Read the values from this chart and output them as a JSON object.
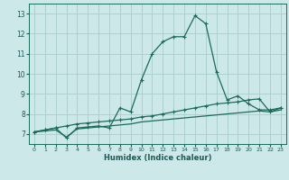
{
  "xlabel": "Humidex (Indice chaleur)",
  "bg_color": "#cce8e8",
  "grid_color": "#aacccc",
  "line_color": "#1a6b5a",
  "xlim": [
    -0.5,
    23.5
  ],
  "ylim": [
    6.5,
    13.5
  ],
  "xticks": [
    0,
    1,
    2,
    3,
    4,
    5,
    6,
    7,
    8,
    9,
    10,
    11,
    12,
    13,
    14,
    15,
    16,
    17,
    18,
    19,
    20,
    21,
    22,
    23
  ],
  "yticks": [
    7,
    8,
    9,
    10,
    11,
    12,
    13
  ],
  "line1_x": [
    0,
    1,
    2,
    3,
    4,
    5,
    6,
    7,
    8,
    9,
    10,
    11,
    12,
    13,
    14,
    15,
    16,
    17,
    18,
    19,
    20,
    21,
    22,
    23
  ],
  "line1_y": [
    7.1,
    7.2,
    7.3,
    6.8,
    7.3,
    7.35,
    7.4,
    7.3,
    8.3,
    8.1,
    9.7,
    11.0,
    11.6,
    11.85,
    11.85,
    12.9,
    12.5,
    10.1,
    8.7,
    8.9,
    8.5,
    8.2,
    8.2,
    8.3
  ],
  "line2_x": [
    0,
    1,
    2,
    3,
    4,
    5,
    6,
    7,
    8,
    9,
    10,
    11,
    12,
    13,
    14,
    15,
    16,
    17,
    18,
    19,
    20,
    21,
    22,
    23
  ],
  "line2_y": [
    7.1,
    7.2,
    7.3,
    7.4,
    7.5,
    7.55,
    7.6,
    7.65,
    7.7,
    7.75,
    7.85,
    7.9,
    8.0,
    8.1,
    8.2,
    8.3,
    8.4,
    8.5,
    8.55,
    8.6,
    8.7,
    8.75,
    8.1,
    8.3
  ],
  "line3_x": [
    0,
    1,
    2,
    3,
    4,
    5,
    6,
    7,
    8,
    9,
    10,
    11,
    12,
    13,
    14,
    15,
    16,
    17,
    18,
    19,
    20,
    21,
    22,
    23
  ],
  "line3_y": [
    7.1,
    7.15,
    7.2,
    6.85,
    7.25,
    7.3,
    7.35,
    7.4,
    7.45,
    7.5,
    7.6,
    7.65,
    7.7,
    7.75,
    7.8,
    7.85,
    7.9,
    7.95,
    8.0,
    8.05,
    8.1,
    8.15,
    8.1,
    8.2
  ],
  "marker": "+",
  "markersize": 3.5
}
